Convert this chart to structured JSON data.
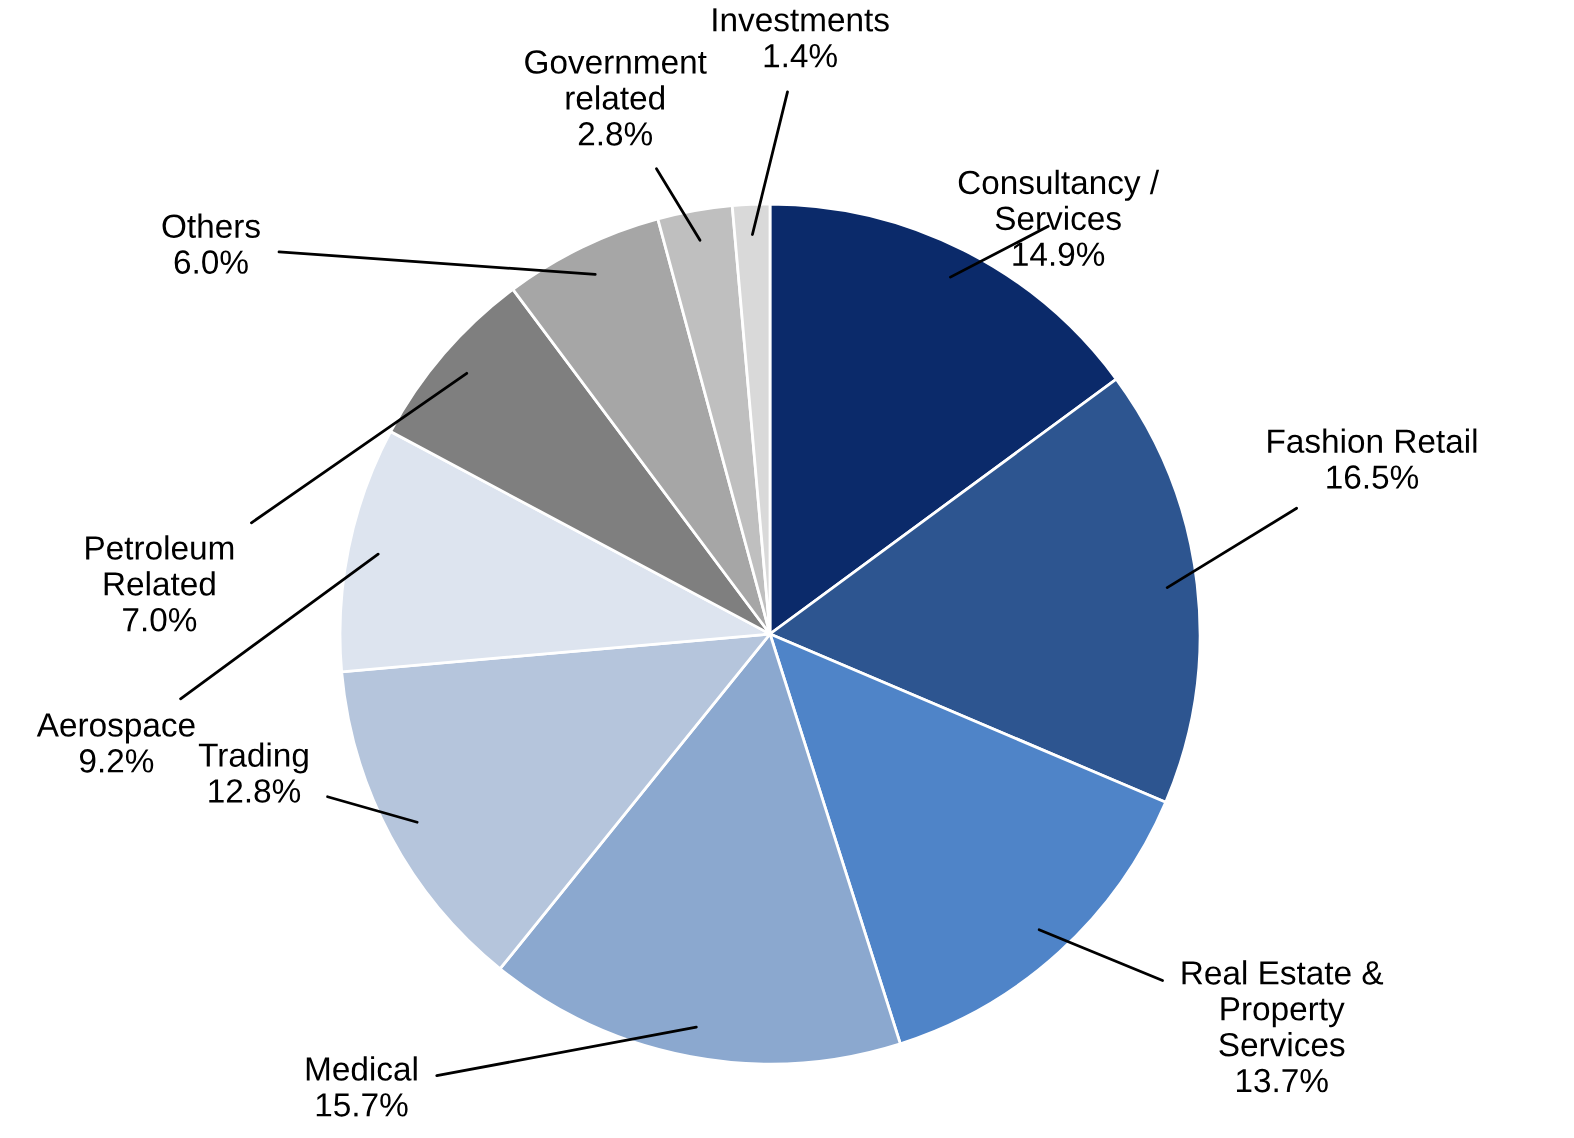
{
  "chart_data": {
    "type": "pie",
    "categories": [
      "Consultancy /\nServices",
      "Fashion Retail",
      "Real Estate &\nProperty\nServices",
      "Medical",
      "Trading",
      "Aerospace",
      "Petroleum\nRelated",
      "Others",
      "Government\nrelated",
      "Investments"
    ],
    "values": [
      14.9,
      16.5,
      13.7,
      15.7,
      12.8,
      9.2,
      7.0,
      6.0,
      2.8,
      1.4
    ],
    "value_labels": [
      "14.9%",
      "16.5%",
      "13.7%",
      "15.7%",
      "12.8%",
      "9.2%",
      "7.0%",
      "6.0%",
      "2.8%",
      "1.4%"
    ],
    "colors": [
      "#0b2a6a",
      "#2d5590",
      "#4f84c8",
      "#8ba8cf",
      "#b5c5dc",
      "#dde4ef",
      "#7f7f7f",
      "#a6a6a6",
      "#bfbfbf",
      "#d9d9d9"
    ]
  }
}
